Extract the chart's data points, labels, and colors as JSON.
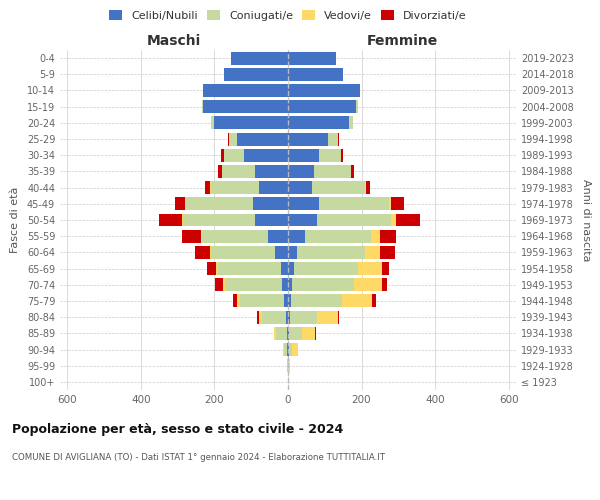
{
  "age_groups": [
    "100+",
    "95-99",
    "90-94",
    "85-89",
    "80-84",
    "75-79",
    "70-74",
    "65-69",
    "60-64",
    "55-59",
    "50-54",
    "45-49",
    "40-44",
    "35-39",
    "30-34",
    "25-29",
    "20-24",
    "15-19",
    "10-14",
    "5-9",
    "0-4"
  ],
  "birth_years": [
    "≤ 1923",
    "1924-1928",
    "1929-1933",
    "1934-1938",
    "1939-1943",
    "1944-1948",
    "1949-1953",
    "1954-1958",
    "1959-1963",
    "1964-1968",
    "1969-1973",
    "1974-1978",
    "1979-1983",
    "1984-1988",
    "1989-1993",
    "1994-1998",
    "1999-2003",
    "2004-2008",
    "2009-2013",
    "2014-2018",
    "2019-2023"
  ],
  "maschi": {
    "celibi": [
      1,
      1,
      2,
      3,
      5,
      10,
      15,
      20,
      35,
      55,
      90,
      95,
      80,
      90,
      120,
      140,
      200,
      230,
      230,
      175,
      155
    ],
    "coniugati": [
      0,
      2,
      8,
      30,
      65,
      120,
      155,
      170,
      175,
      180,
      195,
      185,
      130,
      90,
      55,
      20,
      10,
      5,
      2,
      0,
      0
    ],
    "vedovi": [
      0,
      1,
      3,
      5,
      8,
      10,
      8,
      5,
      3,
      2,
      2,
      1,
      1,
      0,
      0,
      1,
      0,
      0,
      0,
      0,
      0
    ],
    "divorziati": [
      0,
      0,
      0,
      0,
      5,
      10,
      20,
      25,
      40,
      50,
      65,
      25,
      15,
      10,
      8,
      3,
      0,
      0,
      0,
      0,
      0
    ]
  },
  "femmine": {
    "nubili": [
      1,
      1,
      2,
      3,
      5,
      8,
      10,
      15,
      25,
      45,
      80,
      85,
      65,
      70,
      85,
      110,
      165,
      185,
      195,
      150,
      130
    ],
    "coniugate": [
      0,
      2,
      10,
      35,
      75,
      140,
      170,
      175,
      185,
      180,
      200,
      190,
      145,
      100,
      60,
      25,
      12,
      5,
      2,
      0,
      0
    ],
    "vedove": [
      0,
      3,
      15,
      35,
      55,
      80,
      75,
      65,
      40,
      25,
      15,
      5,
      3,
      1,
      0,
      1,
      0,
      0,
      0,
      0,
      0
    ],
    "divorziate": [
      0,
      0,
      0,
      2,
      5,
      10,
      15,
      20,
      40,
      45,
      65,
      35,
      10,
      8,
      5,
      2,
      0,
      0,
      0,
      0,
      0
    ]
  },
  "colors": {
    "celibi": "#4472C4",
    "coniugati": "#c5d9a1",
    "vedovi": "#FFD966",
    "divorziati": "#CC0000"
  },
  "xlim": 620,
  "title": "Popolazione per età, sesso e stato civile - 2024",
  "subtitle": "COMUNE DI AVIGLIANA (TO) - Dati ISTAT 1° gennaio 2024 - Elaborazione TUTTITALIA.IT",
  "xlabel_left": "Maschi",
  "xlabel_right": "Femmine",
  "ylabel_left": "Fasce di età",
  "ylabel_right": "Anni di nascita",
  "legend_labels": [
    "Celibi/Nubili",
    "Coniugati/e",
    "Vedovi/e",
    "Divorziati/e"
  ],
  "background_color": "#ffffff"
}
